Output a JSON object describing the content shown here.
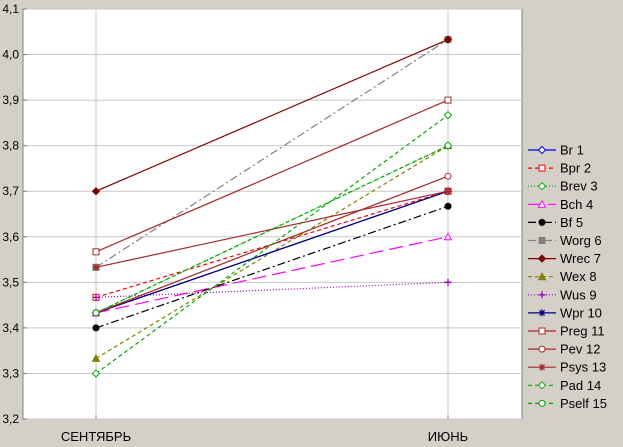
{
  "chart_data": {
    "type": "line",
    "categories": [
      "СЕНТЯБРЬ",
      "ИЮНЬ"
    ],
    "ylim": [
      3.2,
      4.1
    ],
    "yticks": [
      "3,2",
      "3,3",
      "3,4",
      "3,5",
      "3,6",
      "3,7",
      "3,8",
      "3,9",
      "4,0",
      "4,1"
    ],
    "grid": true,
    "legend_position": "right",
    "series": [
      {
        "name": "Br 1",
        "values": [
          3.433,
          3.7
        ],
        "color": "#0000ff",
        "marker": "diamond",
        "filled": false,
        "dash": ""
      },
      {
        "name": "Bpr 2",
        "values": [
          3.467,
          3.7
        ],
        "color": "#ff0000",
        "marker": "square",
        "filled": false,
        "dash": "4,3"
      },
      {
        "name": "Brev 3",
        "values": [
          3.433,
          3.8
        ],
        "color": "#00aa00",
        "marker": "diamond",
        "filled": false,
        "dash": "1,2"
      },
      {
        "name": "Bch 4",
        "values": [
          3.433,
          3.6
        ],
        "color": "#ff00ff",
        "marker": "triangle",
        "filled": false,
        "dash": "14,6"
      },
      {
        "name": "Bf 5",
        "values": [
          3.4,
          3.667
        ],
        "color": "#000000",
        "marker": "circle",
        "filled": true,
        "dash": "8,3,2,3"
      },
      {
        "name": "Worg 6",
        "values": [
          3.533,
          4.033
        ],
        "color": "#808080",
        "marker": "square",
        "filled": true,
        "dash": "8,3,2,3"
      },
      {
        "name": "Wrec 7",
        "values": [
          3.7,
          4.033
        ],
        "color": "#800000",
        "marker": "diamond",
        "filled": true,
        "dash": ""
      },
      {
        "name": "Wex 8",
        "values": [
          3.333,
          3.8
        ],
        "color": "#808000",
        "marker": "triangle",
        "filled": true,
        "dash": "4,3"
      },
      {
        "name": "Wus 9",
        "values": [
          3.467,
          3.5
        ],
        "color": "#9900cc",
        "marker": "plus",
        "filled": false,
        "dash": "1,2"
      },
      {
        "name": "Wpr 10",
        "values": [
          3.433,
          3.7
        ],
        "color": "#000080",
        "marker": "asterisk",
        "filled": false,
        "dash": ""
      },
      {
        "name": "Preg 11",
        "values": [
          3.567,
          3.9
        ],
        "color": "#a52a2a",
        "marker": "square",
        "filled": false,
        "dash": ""
      },
      {
        "name": "Pev 12",
        "values": [
          3.433,
          3.733
        ],
        "color": "#a52a2a",
        "marker": "circle",
        "filled": false,
        "dash": ""
      },
      {
        "name": "Psys 13",
        "values": [
          3.533,
          3.7
        ],
        "color": "#a52a2a",
        "marker": "asterisk",
        "filled": false,
        "dash": ""
      },
      {
        "name": "Pad 14",
        "values": [
          3.3,
          3.867
        ],
        "color": "#00aa00",
        "marker": "diamond",
        "filled": false,
        "dash": "4,3"
      },
      {
        "name": "Pself 15",
        "values": [
          3.433,
          3.8
        ],
        "color": "#00aa00",
        "marker": "circle",
        "filled": false,
        "dash": "4,3"
      }
    ]
  }
}
